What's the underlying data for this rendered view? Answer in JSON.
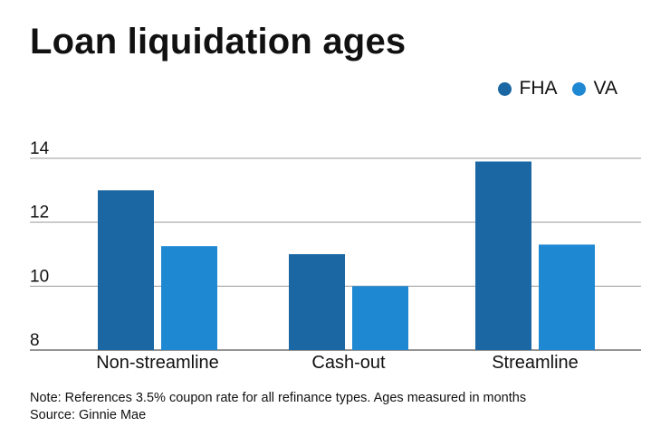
{
  "chart_data": {
    "type": "bar",
    "title": "Loan liquidation ages",
    "categories": [
      "Non-streamline",
      "Cash-out",
      "Streamline"
    ],
    "series": [
      {
        "name": "FHA",
        "color": "#1a67a3",
        "values": [
          13.0,
          11.0,
          13.9
        ]
      },
      {
        "name": "VA",
        "color": "#1e88d3",
        "values": [
          11.25,
          10.0,
          11.3
        ]
      }
    ],
    "ylim": [
      8,
      14
    ],
    "yticks": [
      "8",
      "10",
      "12",
      "14"
    ],
    "grid": true,
    "legend_position": "top-right",
    "xlabel": "",
    "ylabel": ""
  },
  "note": "Note: References 3.5% coupon rate for all refinance types. Ages measured in months",
  "source": "Source: Ginnie Mae"
}
